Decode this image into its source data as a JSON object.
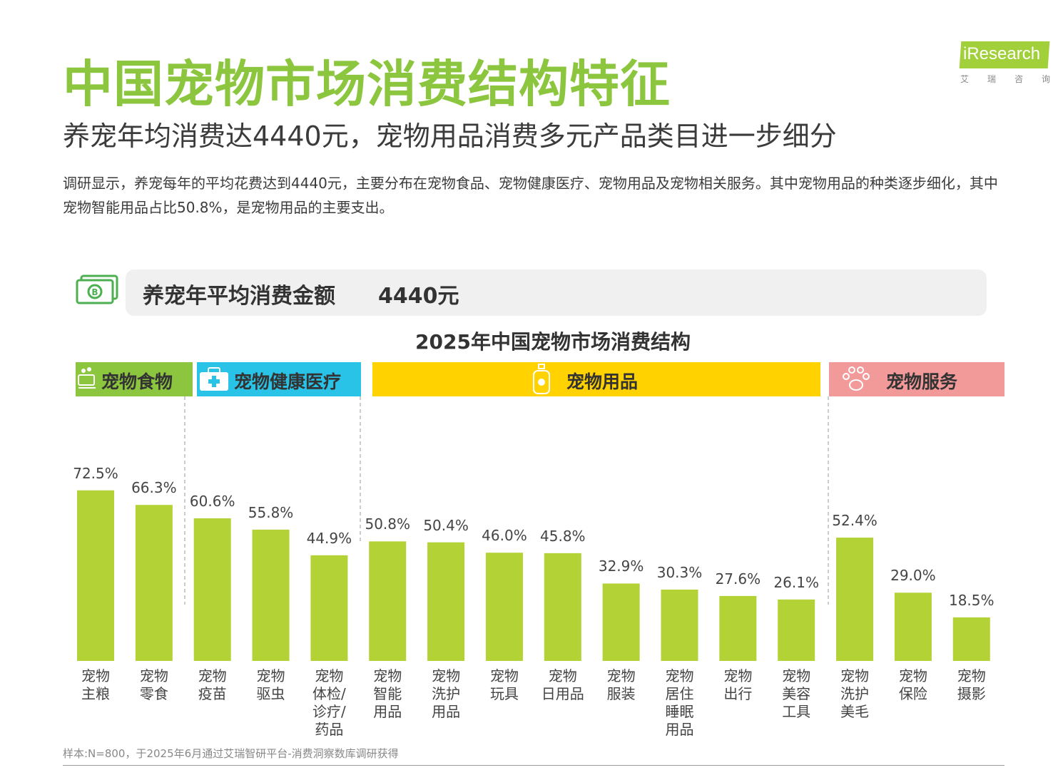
{
  "header": {
    "title": "中国宠物市场消费结构特征",
    "subtitle": "养宠年均消费达4440元，宠物用品消费多元产品类目进一步细分",
    "description": "调研显示，养宠每年的平均花费达到4440元，主要分布在宠物食品、宠物健康医疗、宠物用品及宠物相关服务。其中宠物用品的种类逐步细化，其中宠物智能用品占比50.8%，是宠物用品的主要支出。"
  },
  "logo": {
    "text": "iResearch",
    "sub": "艾瑞咨询",
    "icon": "iresearch-logo"
  },
  "average": {
    "label": "养宠年平均消费金额",
    "value": "4440元",
    "icon": "money-icon"
  },
  "categories": [
    {
      "label": "宠物食物",
      "color": "#8cc63f",
      "icon": "food-bowl-icon"
    },
    {
      "label": "宠物健康医疗",
      "color": "#29c3e8",
      "icon": "medical-kit-icon"
    },
    {
      "label": "宠物用品",
      "color": "#ffd200",
      "icon": "shampoo-bottle-icon"
    },
    {
      "label": "宠物服务",
      "color": "#f29a9a",
      "icon": "paw-icon"
    }
  ],
  "chart_data": {
    "type": "bar",
    "title": "2025年中国宠物市场消费结构",
    "categories": [
      "宠物主粮",
      "宠物零食",
      "宠物疫苗",
      "宠物驱虫",
      "宠物体检/诊疗/药品",
      "宠物智能用品",
      "宠物洗护用品",
      "宠物玩具",
      "宠物日用品",
      "宠物服装",
      "宠物居住睡眠用品",
      "宠物出行",
      "宠物美容工具",
      "宠物洗护美毛",
      "宠物保险",
      "宠物摄影"
    ],
    "x_label_lines": [
      [
        "宠物",
        "主粮"
      ],
      [
        "宠物",
        "零食"
      ],
      [
        "宠物",
        "疫苗"
      ],
      [
        "宠物",
        "驱虫"
      ],
      [
        "宠物",
        "体检/",
        "诊疗/",
        "药品"
      ],
      [
        "宠物",
        "智能",
        "用品"
      ],
      [
        "宠物",
        "洗护",
        "用品"
      ],
      [
        "宠物",
        "玩具"
      ],
      [
        "宠物",
        "日用品"
      ],
      [
        "宠物",
        "服装"
      ],
      [
        "宠物",
        "居住",
        "睡眠",
        "用品"
      ],
      [
        "宠物",
        "出行"
      ],
      [
        "宠物",
        "美容",
        "工具"
      ],
      [
        "宠物",
        "洗护",
        "美毛"
      ],
      [
        "宠物",
        "保险"
      ],
      [
        "宠物",
        "摄影"
      ]
    ],
    "values": [
      72.5,
      66.3,
      60.6,
      55.8,
      44.9,
      50.8,
      50.4,
      46.0,
      45.8,
      32.9,
      30.3,
      27.6,
      26.1,
      52.4,
      29.0,
      18.5
    ],
    "value_labels": [
      "72.5%",
      "66.3%",
      "60.6%",
      "55.8%",
      "44.9%",
      "50.8%",
      "50.4%",
      "46.0%",
      "45.8%",
      "32.9%",
      "30.3%",
      "27.6%",
      "26.1%",
      "52.4%",
      "29.0%",
      "18.5%"
    ],
    "groups": [
      {
        "name": "宠物食物",
        "start": 0,
        "end": 1
      },
      {
        "name": "宠物健康医疗",
        "start": 2,
        "end": 4
      },
      {
        "name": "宠物用品",
        "start": 5,
        "end": 12
      },
      {
        "name": "宠物服务",
        "start": 13,
        "end": 15
      }
    ],
    "bar_color": "#b2d235",
    "xlabel": "",
    "ylabel": "",
    "ylim": [
      0,
      80
    ],
    "grid": false
  },
  "footer": {
    "source": "样本:N=800，于2025年6月通过艾瑞智研平台-消费洞察数库调研获得"
  }
}
